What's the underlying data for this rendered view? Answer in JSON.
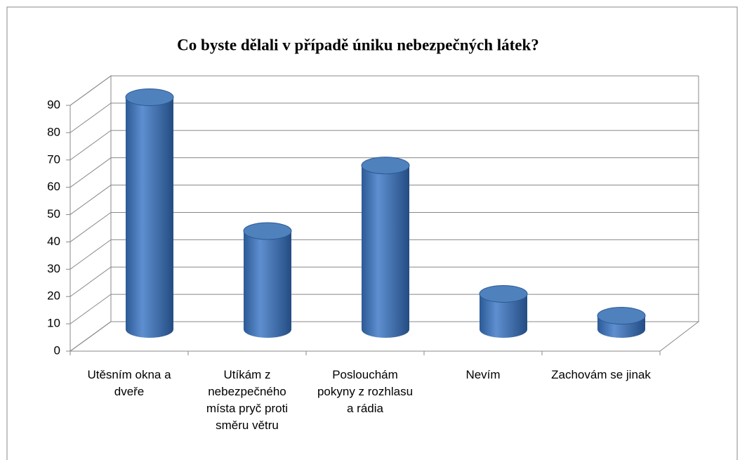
{
  "chart_data": {
    "type": "bar3d",
    "title": "Co byste dělali v případě úniku nebezpečných látek?",
    "categories": [
      "Utěsním okna a dveře",
      "Utíkám z nebezpečného místa pryč proti směru větru",
      "Poslouchám pokyny z rozhlasu a rádia",
      "Nevím",
      "Zachovám se jinak"
    ],
    "values": [
      85,
      36,
      60,
      13,
      5
    ],
    "color": "#4f81bd",
    "ylim": [
      0,
      90
    ],
    "yticks": [
      0,
      10,
      20,
      30,
      40,
      50,
      60,
      70,
      80,
      90
    ],
    "grid": true
  }
}
